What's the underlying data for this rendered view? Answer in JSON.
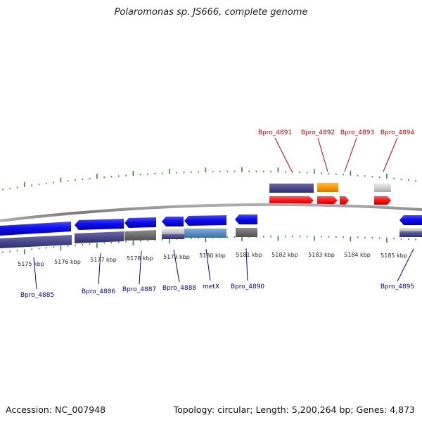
{
  "title": "Polaromonas sp. JS666, complete genome",
  "footer": {
    "accession_label": "Accession: NC_007948",
    "info_label": "Topology: circular; Length: 5,200,264 bp; Genes: 4,873"
  },
  "colors": {
    "backbone": "#8a8a8a",
    "forward_tick": "#2e8b2e",
    "reverse_tick": "#2e8b2e",
    "cds": "#1010ee",
    "gene_dark": "#4a4a8e",
    "gene_gray": "#707070",
    "gene_light": "#cfcfcf",
    "gene_steel": "#5b8fc4",
    "gene_red": "#ff1111",
    "gene_orange": "#ff9a00",
    "upper_label": "#cc0000",
    "lower_label": "#0000aa"
  },
  "scale": {
    "ticks": [
      "5175 kbp",
      "5176 kbp",
      "5177 kbp",
      "5178 kbp",
      "5179 kbp",
      "5180 kbp",
      "5181 kbp",
      "5182 kbp",
      "5183 kbp",
      "5184 kbp",
      "5185 kbp"
    ]
  },
  "upper_labels": [
    "Bpro_4891",
    "Bpro_4892",
    "Bpro_4893",
    "Bpro_4894"
  ],
  "lower_labels": [
    "Bpro_4885",
    "Bpro_4886",
    "Bpro_4887",
    "Bpro_4888",
    "metX",
    "Bpro_4890",
    "Bpro_4895"
  ]
}
